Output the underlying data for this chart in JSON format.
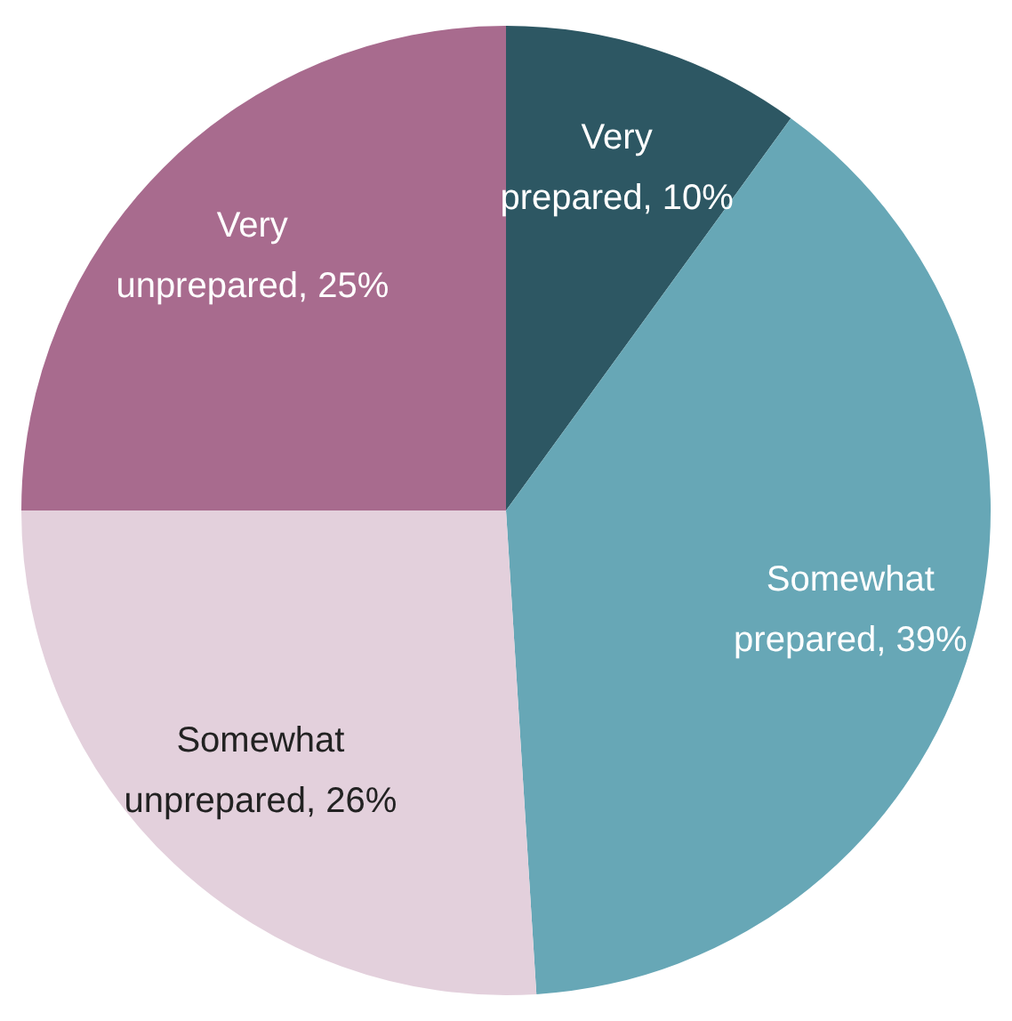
{
  "chart_data": {
    "type": "pie",
    "categories": [
      "Very prepared",
      "Somewhat prepared",
      "Somewhat unprepared",
      "Very unprepared"
    ],
    "values": [
      10,
      39,
      26,
      25
    ],
    "colors": [
      "#2d5763",
      "#67a7b6",
      "#e3d0dc",
      "#a86b8e"
    ],
    "value_labels": [
      "10%",
      "39%",
      "26%",
      "25%"
    ],
    "legend": false
  }
}
